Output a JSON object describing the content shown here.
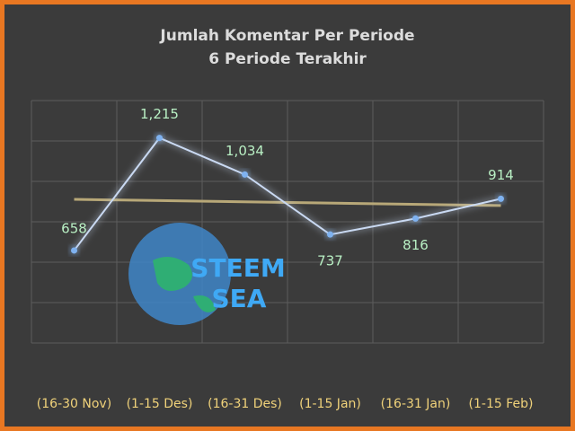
{
  "chart_data": {
    "type": "line",
    "title": "Jumlah Komentar Per Periode",
    "subtitle": "6 Periode Terakhir",
    "categories": [
      "(16-30 Nov)",
      "(1-15 Des)",
      "(16-31 Des)",
      "(1-15 Jan)",
      "(16-31 Jan)",
      "(1-15 Feb)"
    ],
    "series": [
      {
        "color": "#c9d9f2",
        "values": [
          658,
          1215,
          1034,
          737,
          816,
          914
        ],
        "value_labels": [
          "658",
          "1,215",
          "1,034",
          "737",
          "816",
          "914"
        ]
      }
    ],
    "ylim": [
      200,
      1400
    ],
    "yticks": [
      200,
      400,
      600,
      800,
      1000,
      1200,
      1400
    ],
    "grid": true,
    "trendline": true,
    "trendline_color": "#b8a878",
    "watermark": [
      "STEEM",
      "SEA"
    ]
  }
}
